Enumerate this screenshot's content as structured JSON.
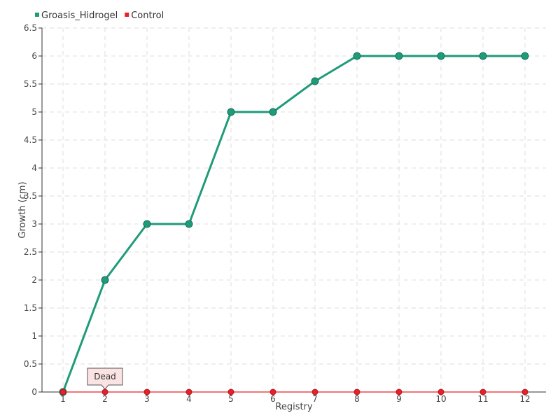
{
  "chart_data": {
    "type": "line",
    "xlabel": "Registry",
    "ylabel": "Growth (cm)",
    "categories": [
      "1",
      "2",
      "3",
      "4",
      "5",
      "6",
      "7",
      "8",
      "9",
      "10",
      "11",
      "12"
    ],
    "ylim": [
      0,
      6.5
    ],
    "yticks": [
      "0",
      "0.5",
      "1",
      "1.5",
      "2",
      "2.5",
      "3",
      "3.5",
      "4",
      "4.5",
      "5",
      "5.5",
      "6",
      "6.5"
    ],
    "grid": true,
    "legend_position": "top-left",
    "series": [
      {
        "name": "Groasis_Hidrogel",
        "color": "#1f9b7a",
        "values": [
          0,
          2,
          3,
          3,
          5,
          5,
          5.55,
          6,
          6,
          6,
          6,
          6
        ]
      },
      {
        "name": "Control",
        "color": "#e8202a",
        "values": [
          0,
          0,
          0,
          0,
          0,
          0,
          0,
          0,
          0,
          0,
          0,
          0
        ]
      }
    ],
    "annotations": [
      {
        "text": "Dead",
        "series": "Control",
        "category": "2"
      }
    ]
  }
}
